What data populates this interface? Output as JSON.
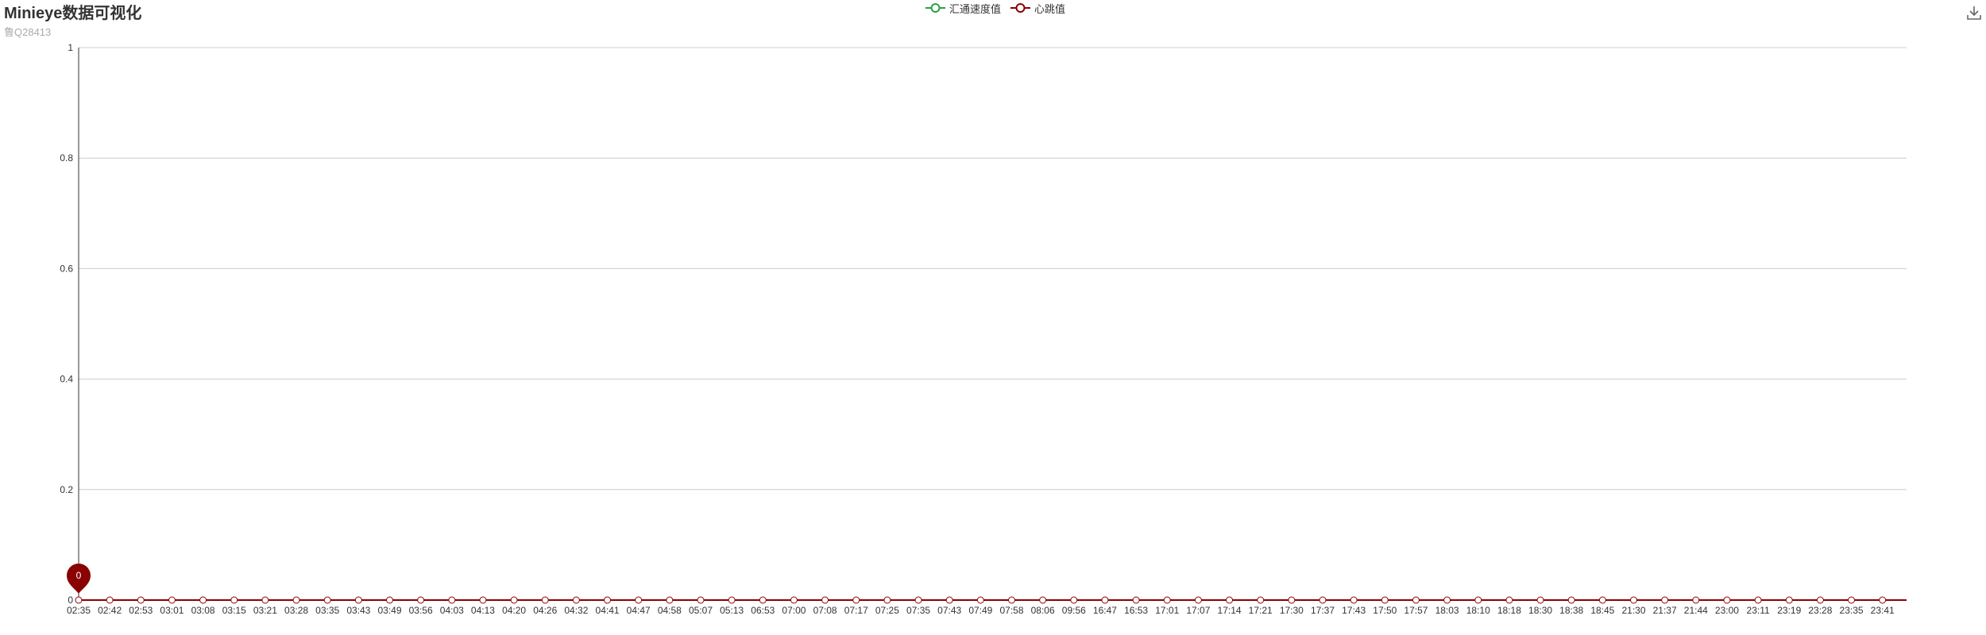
{
  "title": "Minieye数据可视化",
  "subtitle": "鲁Q28413",
  "toolbox": {
    "icon": "download-icon"
  },
  "legend": [
    {
      "name": "汇通速度值",
      "color": "#2f9e44"
    },
    {
      "name": "心跳值",
      "color": "#8b0000"
    }
  ],
  "marker": {
    "label": "0",
    "color": "#8b0000",
    "icon": "map-pin-icon"
  },
  "chart_data": {
    "type": "line",
    "title": "Minieye数据可视化",
    "subtitle": "鲁Q28413",
    "categories": [
      "02:35",
      "02:42",
      "02:53",
      "03:01",
      "03:08",
      "03:15",
      "03:21",
      "03:28",
      "03:35",
      "03:43",
      "03:49",
      "03:56",
      "04:03",
      "04:13",
      "04:20",
      "04:26",
      "04:32",
      "04:41",
      "04:47",
      "04:58",
      "05:07",
      "05:13",
      "06:53",
      "07:00",
      "07:08",
      "07:17",
      "07:25",
      "07:35",
      "07:43",
      "07:49",
      "07:58",
      "08:06",
      "09:56",
      "16:47",
      "16:53",
      "17:01",
      "17:07",
      "17:14",
      "17:21",
      "17:30",
      "17:37",
      "17:43",
      "17:50",
      "17:57",
      "18:03",
      "18:10",
      "18:18",
      "18:30",
      "18:38",
      "18:45",
      "21:30",
      "21:37",
      "21:44",
      "23:00",
      "23:11",
      "23:19",
      "23:28",
      "23:35",
      "23:41"
    ],
    "series": [
      {
        "name": "汇通速度值",
        "color": "#2f9e44",
        "values": [
          0,
          0,
          0,
          0,
          0,
          0,
          0,
          0,
          0,
          0,
          0,
          0,
          0,
          0,
          0,
          0,
          0,
          0,
          0,
          0,
          0,
          0,
          0,
          0,
          0,
          0,
          0,
          0,
          0,
          0,
          0,
          0,
          0,
          0,
          0,
          0,
          0,
          0,
          0,
          0,
          0,
          0,
          0,
          0,
          0,
          0,
          0,
          0,
          0,
          0,
          0,
          0,
          0,
          0,
          0,
          0,
          0,
          0,
          0
        ]
      },
      {
        "name": "心跳值",
        "color": "#8b0000",
        "values": [
          0,
          0,
          0,
          0,
          0,
          0,
          0,
          0,
          0,
          0,
          0,
          0,
          0,
          0,
          0,
          0,
          0,
          0,
          0,
          0,
          0,
          0,
          0,
          0,
          0,
          0,
          0,
          0,
          0,
          0,
          0,
          0,
          0,
          0,
          0,
          0,
          0,
          0,
          0,
          0,
          0,
          0,
          0,
          0,
          0,
          0,
          0,
          0,
          0,
          0,
          0,
          0,
          0,
          0,
          0,
          0,
          0,
          0,
          0
        ]
      }
    ],
    "yticks": [
      "0",
      "0.2",
      "0.4",
      "0.6",
      "0.8",
      "1"
    ],
    "ylim": [
      0,
      1
    ],
    "grid": true,
    "legend_position": "top-center"
  }
}
